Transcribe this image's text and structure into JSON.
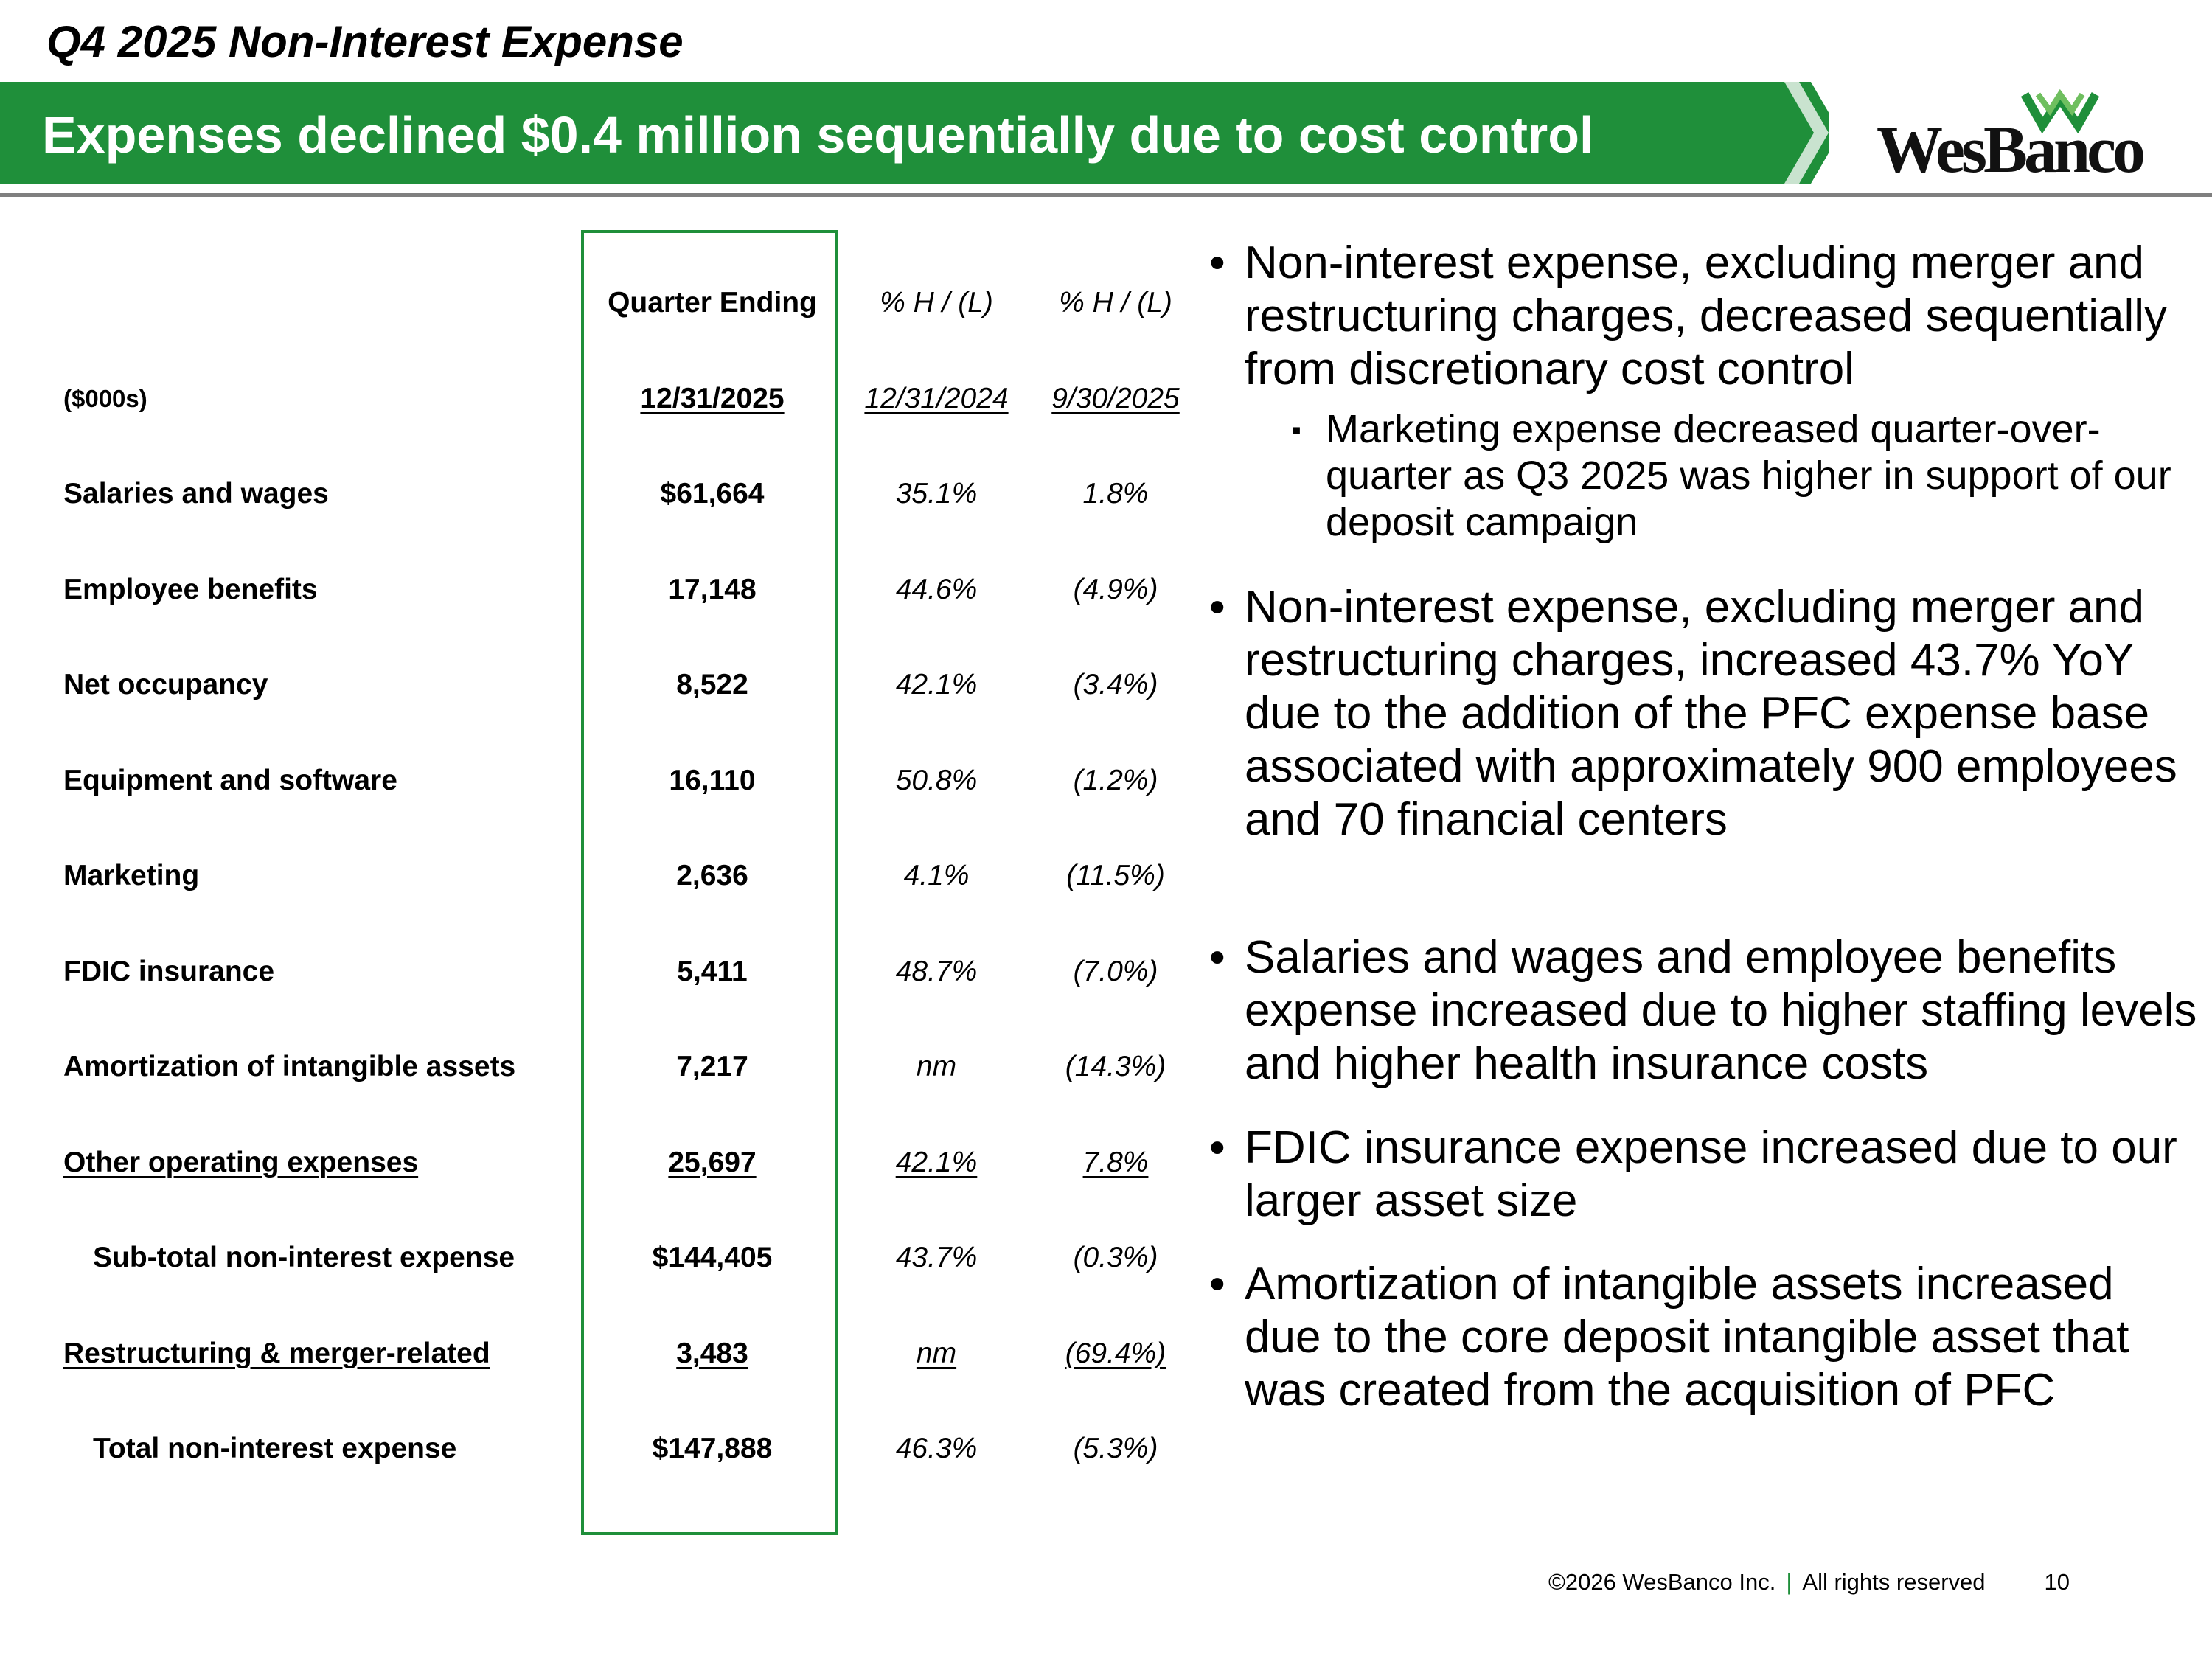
{
  "header": {
    "title": "Q4 2025 Non-Interest Expense",
    "banner": "Expenses declined $0.4 million sequentially due to cost control",
    "logo": "WesBanco"
  },
  "table": {
    "header_top": [
      "Quarter Ending",
      "% H / (L)",
      "% H / (L)"
    ],
    "header_dates": [
      "($000s)",
      "12/31/2025",
      "12/31/2024",
      "9/30/2025"
    ],
    "rows": [
      [
        "Salaries and wages",
        "$61,664",
        "35.1%",
        "1.8%"
      ],
      [
        "Employee benefits",
        "17,148",
        "44.6%",
        "(4.9%)"
      ],
      [
        "Net occupancy",
        "8,522",
        "42.1%",
        "(3.4%)"
      ],
      [
        "Equipment and software",
        "16,110",
        "50.8%",
        "(1.2%)"
      ],
      [
        "Marketing",
        "2,636",
        "4.1%",
        "(11.5%)"
      ],
      [
        "FDIC insurance",
        "5,411",
        "48.7%",
        "(7.0%)"
      ],
      [
        "Amortization of intangible assets",
        "7,217",
        "nm",
        "(14.3%)"
      ],
      [
        "Other operating expenses",
        "25,697",
        "42.1%",
        "7.8%"
      ],
      [
        "Sub-total non-interest expense",
        "$144,405",
        "43.7%",
        "(0.3%)"
      ],
      [
        "Restructuring & merger-related",
        "3,483",
        "nm",
        "(69.4%)"
      ],
      [
        "Total non-interest expense",
        "$147,888",
        "46.3%",
        "(5.3%)"
      ]
    ]
  },
  "bullets": [
    {
      "text": "Non-interest expense, excluding merger and restructuring charges, decreased sequentially from discretionary cost control",
      "sub": [
        "Marketing expense decreased quarter-over-quarter as Q3 2025 was higher in support of our deposit campaign"
      ]
    },
    {
      "text": "Non-interest expense, excluding merger and restructuring charges, increased 43.7% YoY due to the addition of the PFC expense base associated with approximately 900 employees and 70 financial centers"
    },
    {
      "text": "Salaries and wages and employee benefits expense increased due to higher staffing levels and higher health insurance costs"
    },
    {
      "text": "FDIC insurance expense increased due to our larger asset size"
    },
    {
      "text": "Amortization of intangible assets increased due to the core deposit intangible asset that was created from the acquisition of PFC"
    }
  ],
  "footer": {
    "copyright": "©2026 WesBanco Inc.",
    "separator": "|",
    "rights": "All rights reserved",
    "page": "10"
  }
}
